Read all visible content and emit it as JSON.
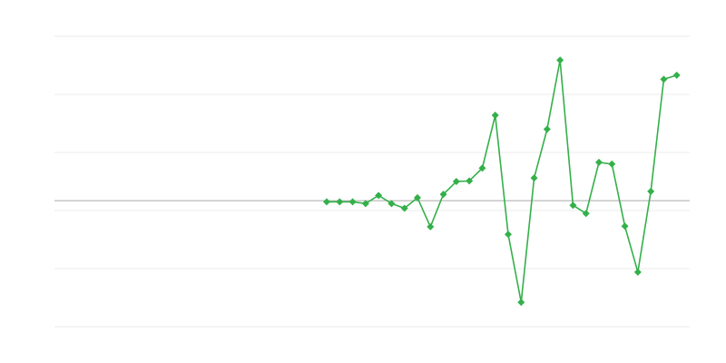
{
  "chart_data": {
    "type": "line",
    "title": "",
    "xlabel": "",
    "ylabel": "",
    "xlim": [
      0,
      49
    ],
    "ylim": [
      -2.17,
      2.83
    ],
    "grid": true,
    "y_gridlines": [
      2.83,
      1.83,
      0.83,
      -0.17,
      -1.17,
      -2.17
    ],
    "baseline": 0,
    "legend": "none",
    "colors": {
      "series": "#34b04a",
      "grid": "#ebebeb",
      "baseline": "#aaaaaa"
    },
    "series": [
      {
        "x": [
          21,
          22,
          23,
          24,
          25,
          26,
          27,
          28,
          29,
          30,
          31,
          32,
          33,
          34,
          35,
          36,
          37,
          38,
          39,
          40,
          41,
          42,
          43,
          44,
          45,
          46,
          47,
          48
        ],
        "values": [
          -0.02,
          -0.02,
          -0.02,
          -0.05,
          0.09,
          -0.05,
          -0.13,
          0.05,
          -0.45,
          0.11,
          0.33,
          0.34,
          0.56,
          1.47,
          -0.58,
          -1.75,
          0.39,
          1.23,
          2.42,
          -0.08,
          -0.22,
          0.66,
          0.63,
          -0.44,
          -1.23,
          0.16,
          2.09,
          2.16
        ],
        "marker": "diamond"
      }
    ]
  }
}
